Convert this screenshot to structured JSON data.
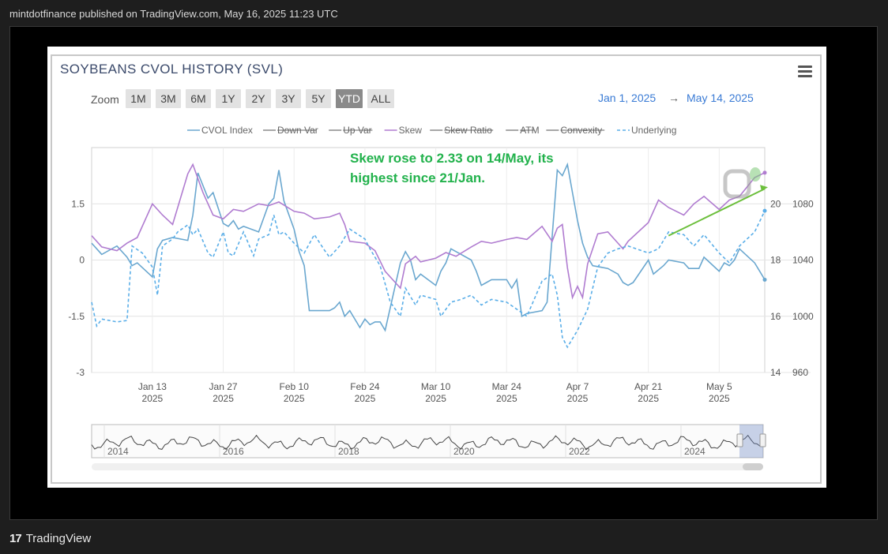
{
  "header": {
    "published_text": "mintdotfinance published on TradingView.com, May 16, 2025 11:23 UTC"
  },
  "footer": {
    "brand_logo": "17",
    "brand_name": "TradingView"
  },
  "toolbar": {
    "zoom_label": "Zoom",
    "zoom_buttons": [
      "1M",
      "3M",
      "6M",
      "1Y",
      "2Y",
      "3Y",
      "5Y",
      "YTD",
      "ALL"
    ],
    "active_zoom": "YTD",
    "date_from": "Jan 1, 2025",
    "date_arrow": "→",
    "date_to": "May 14, 2025",
    "menu_icon": "hamburger-menu-icon"
  },
  "annotation": {
    "line1": "Skew rose to 2.33 on 14/May, its",
    "line2": "highest since 21/Jan."
  },
  "navigator": {
    "years": [
      "2014",
      "2016",
      "2018",
      "2020",
      "2022",
      "2024"
    ]
  },
  "colors": {
    "cvol": "#6aa7cf",
    "skew": "#b07cd0",
    "underlying": "#5aaee8",
    "annotation": "#22b24c",
    "trend": "#6cbf3c",
    "date_range": "#3a7bd5"
  },
  "chart_data": {
    "type": "line",
    "title": "SOYBEANS CVOL HISTORY (SVL)",
    "legend": [
      {
        "name": "CVOL Index",
        "visible": true,
        "style": "solid"
      },
      {
        "name": "Down Var",
        "visible": false
      },
      {
        "name": "Up Var",
        "visible": false
      },
      {
        "name": "Skew",
        "visible": true,
        "style": "solid"
      },
      {
        "name": "Skew Ratio",
        "visible": false
      },
      {
        "name": "ATM",
        "visible": false
      },
      {
        "name": "Convexity",
        "visible": false
      },
      {
        "name": "Underlying",
        "visible": true,
        "style": "dashed"
      }
    ],
    "legend_position": "top-center",
    "grid": true,
    "x_ticks": [
      {
        "date": "2025-01-13",
        "label": "Jan 13",
        "year": "2025"
      },
      {
        "date": "2025-01-27",
        "label": "Jan 27",
        "year": "2025"
      },
      {
        "date": "2025-02-10",
        "label": "Feb 10",
        "year": "2025"
      },
      {
        "date": "2025-02-24",
        "label": "Feb 24",
        "year": "2025"
      },
      {
        "date": "2025-03-10",
        "label": "Mar 10",
        "year": "2025"
      },
      {
        "date": "2025-03-24",
        "label": "Mar 24",
        "year": "2025"
      },
      {
        "date": "2025-04-07",
        "label": "Apr 7",
        "year": "2025"
      },
      {
        "date": "2025-04-21",
        "label": "Apr 21",
        "year": "2025"
      },
      {
        "date": "2025-05-05",
        "label": "May 5",
        "year": "2025"
      }
    ],
    "x_range": [
      "2025-01-01",
      "2025-05-14"
    ],
    "axes": {
      "skew": {
        "side": "left",
        "ticks": [
          "1.5",
          "0",
          "-1.5",
          "-3"
        ],
        "range": [
          -3,
          3
        ]
      },
      "cvol": {
        "side": "right-inner",
        "ticks": [
          "20",
          "18",
          "16",
          "14"
        ],
        "range": [
          14,
          22
        ]
      },
      "underlying": {
        "side": "right-outer",
        "ticks": [
          "1080",
          "1040",
          "1000",
          "960"
        ],
        "range": [
          960,
          1120
        ]
      }
    },
    "series": [
      {
        "name": "CVOL Index",
        "axis": "cvol",
        "points": [
          [
            "2025-01-01",
            18.6
          ],
          [
            "2025-01-03",
            18.2
          ],
          [
            "2025-01-06",
            18.5
          ],
          [
            "2025-01-08",
            18.1
          ],
          [
            "2025-01-09",
            17.8
          ],
          [
            "2025-01-10",
            17.9
          ],
          [
            "2025-01-13",
            17.4
          ],
          [
            "2025-01-14",
            18.4
          ],
          [
            "2025-01-15",
            18.7
          ],
          [
            "2025-01-17",
            18.8
          ],
          [
            "2025-01-20",
            18.7
          ],
          [
            "2025-01-21",
            19.6
          ],
          [
            "2025-01-22",
            21.1
          ],
          [
            "2025-01-24",
            20.2
          ],
          [
            "2025-01-25",
            20.4
          ],
          [
            "2025-01-27",
            19.3
          ],
          [
            "2025-01-28",
            19.2
          ],
          [
            "2025-01-29",
            19.4
          ],
          [
            "2025-01-30",
            19.1
          ],
          [
            "2025-01-31",
            19.2
          ],
          [
            "2025-02-03",
            19.0
          ],
          [
            "2025-02-04",
            19.5
          ],
          [
            "2025-02-05",
            20.0
          ],
          [
            "2025-02-06",
            20.2
          ],
          [
            "2025-02-07",
            21.2
          ],
          [
            "2025-02-08",
            20.1
          ],
          [
            "2025-02-10",
            19.1
          ],
          [
            "2025-02-11",
            18.3
          ],
          [
            "2025-02-12",
            17.8
          ],
          [
            "2025-02-13",
            16.2
          ],
          [
            "2025-02-14",
            16.2
          ],
          [
            "2025-02-17",
            16.2
          ],
          [
            "2025-02-18",
            16.3
          ],
          [
            "2025-02-19",
            16.5
          ],
          [
            "2025-02-20",
            16.0
          ],
          [
            "2025-02-21",
            16.2
          ],
          [
            "2025-02-23",
            15.6
          ],
          [
            "2025-02-24",
            15.9
          ],
          [
            "2025-02-25",
            15.7
          ],
          [
            "2025-02-26",
            15.8
          ],
          [
            "2025-02-27",
            15.8
          ],
          [
            "2025-02-28",
            15.5
          ],
          [
            "2025-03-03",
            17.9
          ],
          [
            "2025-03-04",
            18.3
          ],
          [
            "2025-03-05",
            18.0
          ],
          [
            "2025-03-06",
            17.3
          ],
          [
            "2025-03-07",
            17.5
          ],
          [
            "2025-03-10",
            17.1
          ],
          [
            "2025-03-11",
            17.6
          ],
          [
            "2025-03-12",
            17.9
          ],
          [
            "2025-03-13",
            18.4
          ],
          [
            "2025-03-14",
            18.3
          ],
          [
            "2025-03-17",
            18.0
          ],
          [
            "2025-03-18",
            17.6
          ],
          [
            "2025-03-19",
            17.1
          ],
          [
            "2025-03-20",
            17.2
          ],
          [
            "2025-03-21",
            17.3
          ],
          [
            "2025-03-24",
            17.3
          ],
          [
            "2025-03-25",
            17.0
          ],
          [
            "2025-03-26",
            17.3
          ],
          [
            "2025-03-27",
            16.0
          ],
          [
            "2025-03-28",
            16.1
          ],
          [
            "2025-03-31",
            16.2
          ],
          [
            "2025-04-01",
            16.5
          ],
          [
            "2025-04-03",
            21.2
          ],
          [
            "2025-04-04",
            21.0
          ],
          [
            "2025-04-05",
            21.4
          ],
          [
            "2025-04-07",
            19.4
          ],
          [
            "2025-04-08",
            18.6
          ],
          [
            "2025-04-09",
            18.1
          ],
          [
            "2025-04-10",
            17.8
          ],
          [
            "2025-04-13",
            17.7
          ],
          [
            "2025-04-15",
            17.5
          ],
          [
            "2025-04-16",
            17.2
          ],
          [
            "2025-04-17",
            17.1
          ],
          [
            "2025-04-18",
            17.2
          ],
          [
            "2025-04-21",
            18.0
          ],
          [
            "2025-04-22",
            17.5
          ],
          [
            "2025-04-24",
            17.8
          ],
          [
            "2025-04-25",
            18.0
          ],
          [
            "2025-04-28",
            17.9
          ],
          [
            "2025-04-29",
            17.7
          ],
          [
            "2025-04-30",
            17.7
          ],
          [
            "2025-05-01",
            17.7
          ],
          [
            "2025-05-02",
            18.1
          ],
          [
            "2025-05-05",
            17.6
          ],
          [
            "2025-05-06",
            17.9
          ],
          [
            "2025-05-07",
            17.8
          ],
          [
            "2025-05-08",
            18.0
          ],
          [
            "2025-05-09",
            18.4
          ],
          [
            "2025-05-12",
            17.9
          ],
          [
            "2025-05-13",
            17.6
          ],
          [
            "2025-05-14",
            17.3
          ]
        ]
      },
      {
        "name": "Skew",
        "axis": "skew",
        "points": [
          [
            "2025-01-01",
            0.65
          ],
          [
            "2025-01-03",
            0.35
          ],
          [
            "2025-01-06",
            0.25
          ],
          [
            "2025-01-08",
            0.45
          ],
          [
            "2025-01-10",
            0.6
          ],
          [
            "2025-01-13",
            1.5
          ],
          [
            "2025-01-15",
            1.2
          ],
          [
            "2025-01-17",
            0.95
          ],
          [
            "2025-01-20",
            2.3
          ],
          [
            "2025-01-21",
            2.55
          ],
          [
            "2025-01-23",
            1.8
          ],
          [
            "2025-01-25",
            1.2
          ],
          [
            "2025-01-27",
            1.1
          ],
          [
            "2025-01-29",
            1.35
          ],
          [
            "2025-01-31",
            1.3
          ],
          [
            "2025-02-03",
            1.5
          ],
          [
            "2025-02-05",
            1.45
          ],
          [
            "2025-02-07",
            1.55
          ],
          [
            "2025-02-10",
            1.3
          ],
          [
            "2025-02-12",
            1.25
          ],
          [
            "2025-02-14",
            1.1
          ],
          [
            "2025-02-17",
            1.15
          ],
          [
            "2025-02-19",
            1.25
          ],
          [
            "2025-02-20",
            0.95
          ],
          [
            "2025-02-21",
            0.5
          ],
          [
            "2025-02-24",
            0.45
          ],
          [
            "2025-02-26",
            0.25
          ],
          [
            "2025-02-28",
            -0.3
          ],
          [
            "2025-03-03",
            -0.75
          ],
          [
            "2025-03-04",
            -0.1
          ],
          [
            "2025-03-06",
            0.1
          ],
          [
            "2025-03-07",
            -0.05
          ],
          [
            "2025-03-10",
            0.05
          ],
          [
            "2025-03-12",
            0.2
          ],
          [
            "2025-03-14",
            0.1
          ],
          [
            "2025-03-17",
            0.35
          ],
          [
            "2025-03-19",
            0.5
          ],
          [
            "2025-03-21",
            0.45
          ],
          [
            "2025-03-24",
            0.55
          ],
          [
            "2025-03-26",
            0.6
          ],
          [
            "2025-03-28",
            0.55
          ],
          [
            "2025-03-31",
            0.9
          ],
          [
            "2025-04-02",
            0.5
          ],
          [
            "2025-04-03",
            0.85
          ],
          [
            "2025-04-04",
            0.95
          ],
          [
            "2025-04-05",
            -0.2
          ],
          [
            "2025-04-06",
            -1.0
          ],
          [
            "2025-04-07",
            -0.7
          ],
          [
            "2025-04-08",
            -1.0
          ],
          [
            "2025-04-09",
            -0.1
          ],
          [
            "2025-04-11",
            0.7
          ],
          [
            "2025-04-13",
            0.75
          ],
          [
            "2025-04-15",
            0.45
          ],
          [
            "2025-04-16",
            0.3
          ],
          [
            "2025-04-17",
            0.5
          ],
          [
            "2025-04-21",
            1.0
          ],
          [
            "2025-04-23",
            1.6
          ],
          [
            "2025-04-25",
            1.4
          ],
          [
            "2025-04-28",
            1.2
          ],
          [
            "2025-04-30",
            1.5
          ],
          [
            "2025-05-02",
            1.7
          ],
          [
            "2025-05-05",
            1.35
          ],
          [
            "2025-05-07",
            1.6
          ],
          [
            "2025-05-09",
            1.7
          ],
          [
            "2025-05-12",
            2.2
          ],
          [
            "2025-05-14",
            2.33
          ]
        ]
      },
      {
        "name": "Underlying",
        "axis": "underlying",
        "dashed": true,
        "points": [
          [
            "2025-01-01",
            1010
          ],
          [
            "2025-01-02",
            993
          ],
          [
            "2025-01-03",
            998
          ],
          [
            "2025-01-06",
            996
          ],
          [
            "2025-01-08",
            997
          ],
          [
            "2025-01-09",
            1050
          ],
          [
            "2025-01-11",
            1045
          ],
          [
            "2025-01-13",
            1035
          ],
          [
            "2025-01-14",
            1015
          ],
          [
            "2025-01-15",
            1050
          ],
          [
            "2025-01-17",
            1055
          ],
          [
            "2025-01-18",
            1060
          ],
          [
            "2025-01-20",
            1065
          ],
          [
            "2025-01-21",
            1058
          ],
          [
            "2025-01-22",
            1062
          ],
          [
            "2025-01-24",
            1045
          ],
          [
            "2025-01-25",
            1042
          ],
          [
            "2025-01-27",
            1060
          ],
          [
            "2025-01-28",
            1045
          ],
          [
            "2025-01-29",
            1043
          ],
          [
            "2025-01-31",
            1060
          ],
          [
            "2025-02-02",
            1043
          ],
          [
            "2025-02-03",
            1055
          ],
          [
            "2025-02-05",
            1058
          ],
          [
            "2025-02-06",
            1072
          ],
          [
            "2025-02-07",
            1058
          ],
          [
            "2025-02-08",
            1060
          ],
          [
            "2025-02-10",
            1052
          ],
          [
            "2025-02-12",
            1045
          ],
          [
            "2025-02-14",
            1058
          ],
          [
            "2025-02-16",
            1047
          ],
          [
            "2025-02-17",
            1042
          ],
          [
            "2025-02-19",
            1050
          ],
          [
            "2025-02-21",
            1062
          ],
          [
            "2025-02-24",
            1055
          ],
          [
            "2025-02-25",
            1048
          ],
          [
            "2025-02-27",
            1036
          ],
          [
            "2025-03-01",
            1010
          ],
          [
            "2025-03-03",
            1000
          ],
          [
            "2025-03-04",
            1020
          ],
          [
            "2025-03-06",
            1008
          ],
          [
            "2025-03-07",
            1015
          ],
          [
            "2025-03-10",
            1012
          ],
          [
            "2025-03-11",
            1000
          ],
          [
            "2025-03-13",
            1010
          ],
          [
            "2025-03-15",
            1012
          ],
          [
            "2025-03-17",
            1015
          ],
          [
            "2025-03-19",
            1008
          ],
          [
            "2025-03-21",
            1012
          ],
          [
            "2025-03-24",
            1010
          ],
          [
            "2025-03-26",
            1005
          ],
          [
            "2025-03-28",
            1000
          ],
          [
            "2025-03-31",
            1025
          ],
          [
            "2025-04-02",
            1030
          ],
          [
            "2025-04-03",
            1015
          ],
          [
            "2025-04-04",
            985
          ],
          [
            "2025-04-05",
            978
          ],
          [
            "2025-04-07",
            990
          ],
          [
            "2025-04-09",
            1005
          ],
          [
            "2025-04-11",
            1035
          ],
          [
            "2025-04-13",
            1045
          ],
          [
            "2025-04-15",
            1048
          ],
          [
            "2025-04-17",
            1050
          ],
          [
            "2025-04-21",
            1045
          ],
          [
            "2025-04-23",
            1048
          ],
          [
            "2025-04-25",
            1060
          ],
          [
            "2025-04-28",
            1058
          ],
          [
            "2025-04-30",
            1050
          ],
          [
            "2025-05-02",
            1058
          ],
          [
            "2025-05-05",
            1045
          ],
          [
            "2025-05-07",
            1038
          ],
          [
            "2025-05-09",
            1050
          ],
          [
            "2025-05-12",
            1060
          ],
          [
            "2025-05-14",
            1075
          ]
        ]
      }
    ],
    "trendline": {
      "axis": "skew",
      "from": [
        "2025-04-25",
        0.65
      ],
      "to": [
        "2025-05-14",
        1.9
      ]
    }
  }
}
